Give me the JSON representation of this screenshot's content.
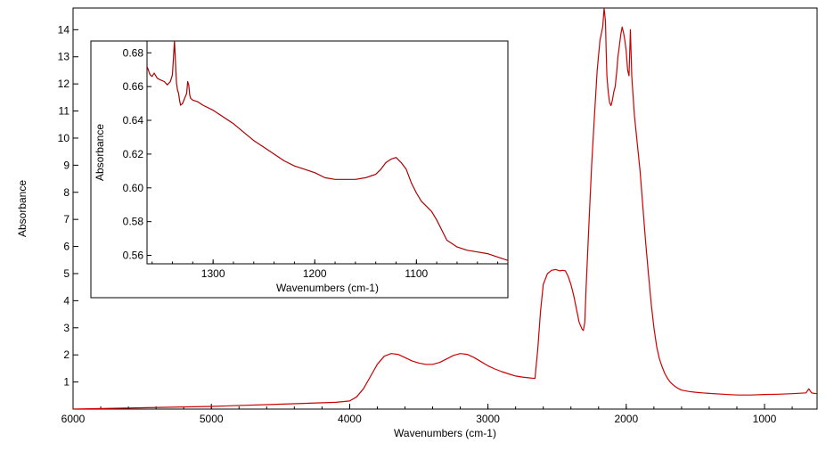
{
  "chart_data": [
    {
      "id": "main",
      "type": "line",
      "title": "",
      "xlabel": "Wavenumbers (cm-1)",
      "ylabel": "Absorbance",
      "xlim": [
        6000,
        620
      ],
      "ylim": [
        0,
        14.8
      ],
      "x_ticks": [
        6000,
        5000,
        4000,
        3000,
        2000,
        1000
      ],
      "y_ticks": [
        1,
        2,
        3,
        4,
        5,
        6,
        7,
        8,
        9,
        10,
        11,
        12,
        13,
        14
      ],
      "grid": false,
      "line_color": "#cc0000",
      "series": [
        {
          "x": [
            6000,
            5500,
            5000,
            4500,
            4100,
            4000,
            3950,
            3900,
            3850,
            3800,
            3750,
            3700,
            3650,
            3600,
            3550,
            3500,
            3450,
            3400,
            3350,
            3300,
            3250,
            3200,
            3150,
            3100,
            3050,
            3000,
            2950,
            2900,
            2850,
            2800,
            2750,
            2700,
            2680,
            2660,
            2640,
            2620,
            2600,
            2570,
            2540,
            2510,
            2480,
            2460,
            2440,
            2420,
            2400,
            2380,
            2360,
            2340,
            2320,
            2310,
            2300,
            2290,
            2270,
            2250,
            2230,
            2210,
            2190,
            2170,
            2160,
            2150,
            2145,
            2140,
            2130,
            2120,
            2110,
            2100,
            2090,
            2080,
            2070,
            2060,
            2050,
            2040,
            2030,
            2020,
            2010,
            2000,
            1990,
            1980,
            1970,
            1960,
            1950,
            1940,
            1920,
            1900,
            1880,
            1860,
            1840,
            1820,
            1800,
            1780,
            1760,
            1740,
            1720,
            1700,
            1680,
            1650,
            1620,
            1600,
            1550,
            1500,
            1450,
            1400,
            1300,
            1200,
            1100,
            1000,
            900,
            800,
            700,
            680,
            660,
            640,
            620
          ],
          "y": [
            0.0,
            0.05,
            0.1,
            0.18,
            0.25,
            0.3,
            0.45,
            0.75,
            1.2,
            1.65,
            1.95,
            2.05,
            2.02,
            1.9,
            1.78,
            1.7,
            1.65,
            1.65,
            1.72,
            1.85,
            1.98,
            2.05,
            2.02,
            1.9,
            1.75,
            1.6,
            1.48,
            1.38,
            1.3,
            1.22,
            1.18,
            1.15,
            1.14,
            1.13,
            2.2,
            3.6,
            4.6,
            5.0,
            5.12,
            5.15,
            5.1,
            5.12,
            5.1,
            4.9,
            4.6,
            4.2,
            3.7,
            3.2,
            2.95,
            2.9,
            3.2,
            4.5,
            6.8,
            9.0,
            10.8,
            12.5,
            13.6,
            14.1,
            14.8,
            14.3,
            13.2,
            12.3,
            11.7,
            11.3,
            11.2,
            11.4,
            11.7,
            11.9,
            12.4,
            13.0,
            13.4,
            13.8,
            14.1,
            13.9,
            13.6,
            13.2,
            12.5,
            12.3,
            14.0,
            12.3,
            11.5,
            10.8,
            9.8,
            8.8,
            7.5,
            6.2,
            5.0,
            3.9,
            3.0,
            2.3,
            1.85,
            1.55,
            1.3,
            1.12,
            0.98,
            0.85,
            0.75,
            0.7,
            0.65,
            0.62,
            0.6,
            0.58,
            0.55,
            0.52,
            0.52,
            0.54,
            0.55,
            0.57,
            0.6,
            0.75,
            0.6,
            0.58,
            0.57
          ]
        }
      ]
    },
    {
      "id": "inset",
      "type": "line",
      "title": "",
      "xlabel": "Wavenumbers (cm-1)",
      "ylabel": "Absorbance",
      "xlim": [
        1365,
        1010
      ],
      "ylim": [
        0.555,
        0.687
      ],
      "x_ticks": [
        1300,
        1200,
        1100
      ],
      "y_ticks": [
        0.56,
        0.58,
        0.6,
        0.62,
        0.64,
        0.66,
        0.68
      ],
      "y_tick_labels": [
        "0.56",
        "0.58",
        "0.60",
        "0.62",
        "0.64",
        "0.66",
        "0.68"
      ],
      "grid": false,
      "line_color": "#aa0000",
      "series": [
        {
          "x": [
            1365,
            1362,
            1360,
            1358,
            1355,
            1352,
            1348,
            1345,
            1342,
            1340,
            1338,
            1337,
            1336,
            1335,
            1334,
            1333,
            1332,
            1330,
            1328,
            1326,
            1325,
            1324,
            1323,
            1322,
            1320,
            1315,
            1310,
            1300,
            1290,
            1280,
            1270,
            1260,
            1250,
            1240,
            1230,
            1220,
            1210,
            1200,
            1190,
            1180,
            1170,
            1160,
            1150,
            1145,
            1140,
            1135,
            1130,
            1125,
            1120,
            1115,
            1110,
            1105,
            1100,
            1095,
            1090,
            1085,
            1080,
            1075,
            1070,
            1060,
            1050,
            1040,
            1030,
            1020,
            1010
          ],
          "y": [
            0.672,
            0.667,
            0.666,
            0.668,
            0.665,
            0.664,
            0.663,
            0.661,
            0.663,
            0.667,
            0.687,
            0.675,
            0.662,
            0.658,
            0.656,
            0.652,
            0.649,
            0.65,
            0.653,
            0.656,
            0.663,
            0.661,
            0.655,
            0.653,
            0.652,
            0.651,
            0.649,
            0.646,
            0.642,
            0.638,
            0.633,
            0.628,
            0.624,
            0.62,
            0.616,
            0.613,
            0.611,
            0.609,
            0.606,
            0.605,
            0.605,
            0.605,
            0.606,
            0.607,
            0.608,
            0.611,
            0.615,
            0.617,
            0.618,
            0.615,
            0.611,
            0.603,
            0.597,
            0.592,
            0.589,
            0.586,
            0.581,
            0.575,
            0.569,
            0.565,
            0.563,
            0.562,
            0.561,
            0.559,
            0.557
          ]
        }
      ]
    }
  ]
}
